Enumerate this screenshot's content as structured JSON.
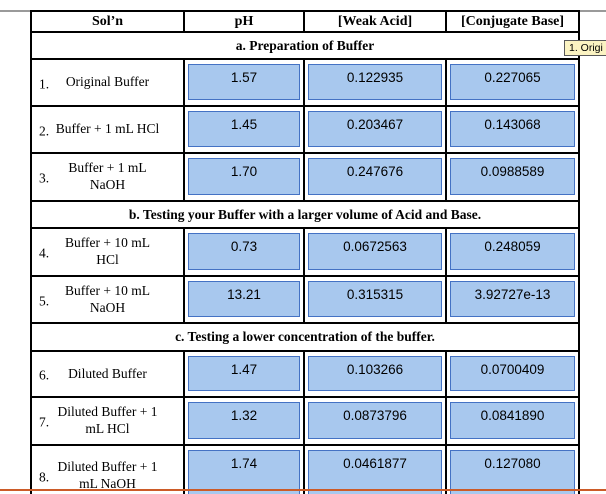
{
  "header": {
    "columns": [
      "Sol’n",
      "pH",
      "[Weak Acid]",
      "[Conjugate Base]"
    ]
  },
  "sections": [
    {
      "title": "a. Preparation of Buffer",
      "rows": [
        {
          "num": "1.",
          "label": "Original Buffer",
          "ph": "1.57",
          "weak_acid": "0.122935",
          "conjugate_base": "0.227065"
        },
        {
          "num": "2.",
          "label": "Buffer + 1 mL HCl",
          "ph": "1.45",
          "weak_acid": "0.203467",
          "conjugate_base": "0.143068"
        },
        {
          "num": "3.",
          "label": "Buffer + 1 mL NaOH",
          "ph": "1.70",
          "weak_acid": "0.247676",
          "conjugate_base": "0.0988589"
        }
      ]
    },
    {
      "title": "b. Testing your Buffer with a larger volume of Acid and Base.",
      "rows": [
        {
          "num": "4.",
          "label": "Buffer + 10 mL HCl",
          "ph": "0.73",
          "weak_acid": "0.0672563",
          "conjugate_base": "0.248059"
        },
        {
          "num": "5.",
          "label": "Buffer + 10 mL NaOH",
          "ph": "13.21",
          "weak_acid": "0.315315",
          "conjugate_base": "3.92727e-13"
        }
      ]
    },
    {
      "title": "c. Testing a lower concentration of the buffer.",
      "rows": [
        {
          "num": "6.",
          "label": "Diluted Buffer",
          "ph": "1.47",
          "weak_acid": "0.103266",
          "conjugate_base": "0.0700409"
        },
        {
          "num": "7.",
          "label": "Diluted Buffer + 1 mL HCl",
          "ph": "1.32",
          "weak_acid": "0.0873796",
          "conjugate_base": "0.0841890"
        },
        {
          "num": "8.",
          "label": "Diluted Buffer + 1 mL NaOH",
          "ph": "1.74",
          "weak_acid": "0.0461877",
          "conjugate_base": "0.127080"
        }
      ]
    }
  ],
  "annotation": {
    "text": "1. Origi"
  },
  "colors": {
    "input_fill": "#A8C8EE",
    "input_border": "#4472C4",
    "orange_divider": "#CC5B28",
    "annotation_bg": "#FBF3C2"
  }
}
